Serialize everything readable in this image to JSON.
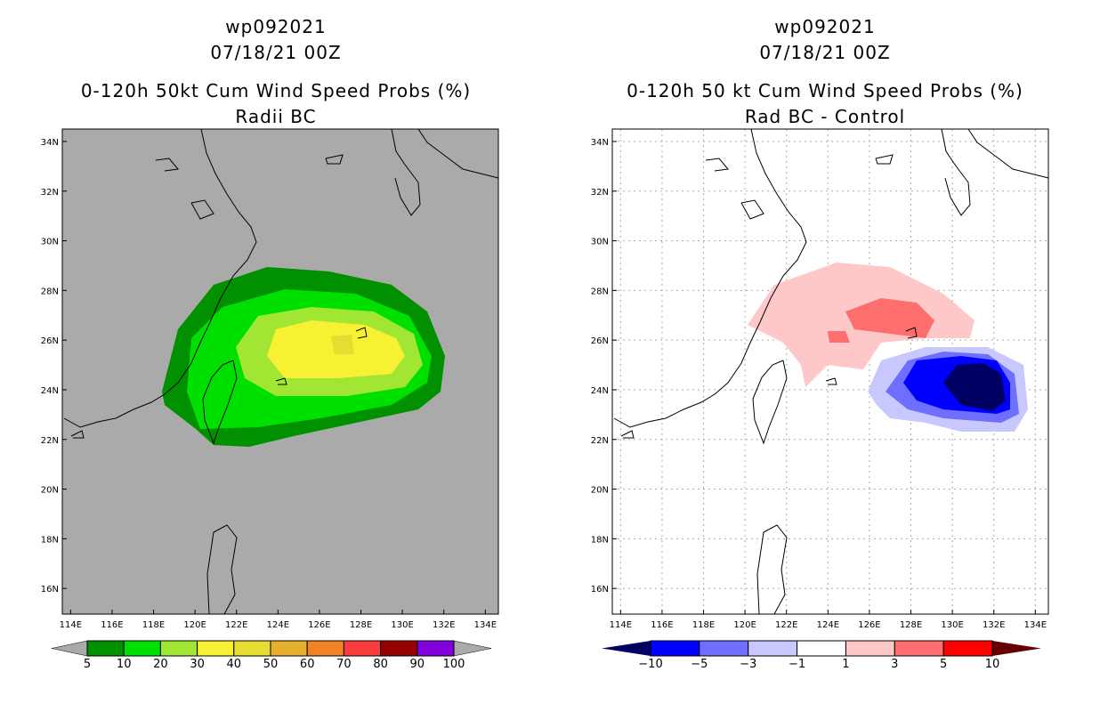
{
  "chart_data": [
    {
      "type": "heatmap",
      "title_lines": [
        "wp092021",
        "07/18/21 00Z",
        "0-120h 50kt Cum Wind Speed Probs (%)",
        "Radii BC"
      ],
      "lon_ticks": [
        "114E",
        "116E",
        "118E",
        "120E",
        "122E",
        "124E",
        "126E",
        "128E",
        "130E",
        "132E",
        "134E"
      ],
      "lat_ticks": [
        "34N",
        "32N",
        "30N",
        "28N",
        "26N",
        "24N",
        "22N",
        "20N",
        "18N",
        "16N"
      ],
      "lon_range": [
        113.6,
        134.6
      ],
      "lat_range": [
        15.0,
        34.5
      ],
      "colorbar": {
        "labels": [
          "5",
          "10",
          "20",
          "30",
          "40",
          "50",
          "60",
          "70",
          "80",
          "90",
          "100"
        ],
        "colors": [
          "#009000",
          "#00e000",
          "#a0e632",
          "#f8f032",
          "#e6dc32",
          "#e6af2d",
          "#f08228",
          "#fa3c3c",
          "#960000",
          "#8200dc"
        ],
        "extend_color": "#aaaaaa"
      },
      "background": "#aaaaaa"
    },
    {
      "type": "heatmap",
      "title_lines": [
        "wp092021",
        "07/18/21 00Z",
        "0-120h 50 kt Cum Wind Speed Probs (%)",
        "Rad BC - Control"
      ],
      "lon_ticks": [
        "114E",
        "116E",
        "118E",
        "120E",
        "122E",
        "124E",
        "126E",
        "128E",
        "130E",
        "132E",
        "134E"
      ],
      "lat_ticks": [
        "34N",
        "32N",
        "30N",
        "28N",
        "26N",
        "24N",
        "22N",
        "20N",
        "18N",
        "16N"
      ],
      "lon_range": [
        113.6,
        134.6
      ],
      "lat_range": [
        15.0,
        34.5
      ],
      "colorbar": {
        "labels": [
          "-10",
          "-5",
          "-3",
          "-1",
          "1",
          "3",
          "5",
          "10"
        ],
        "colors": [
          "#0000ff",
          "#6e6eff",
          "#c8c8ff",
          "#ffffff",
          "#ffc8c8",
          "#ff6e6e",
          "#ff0000"
        ],
        "low_color": "#000064",
        "high_color": "#640000"
      },
      "background": "#ffffff",
      "grid": true
    }
  ]
}
